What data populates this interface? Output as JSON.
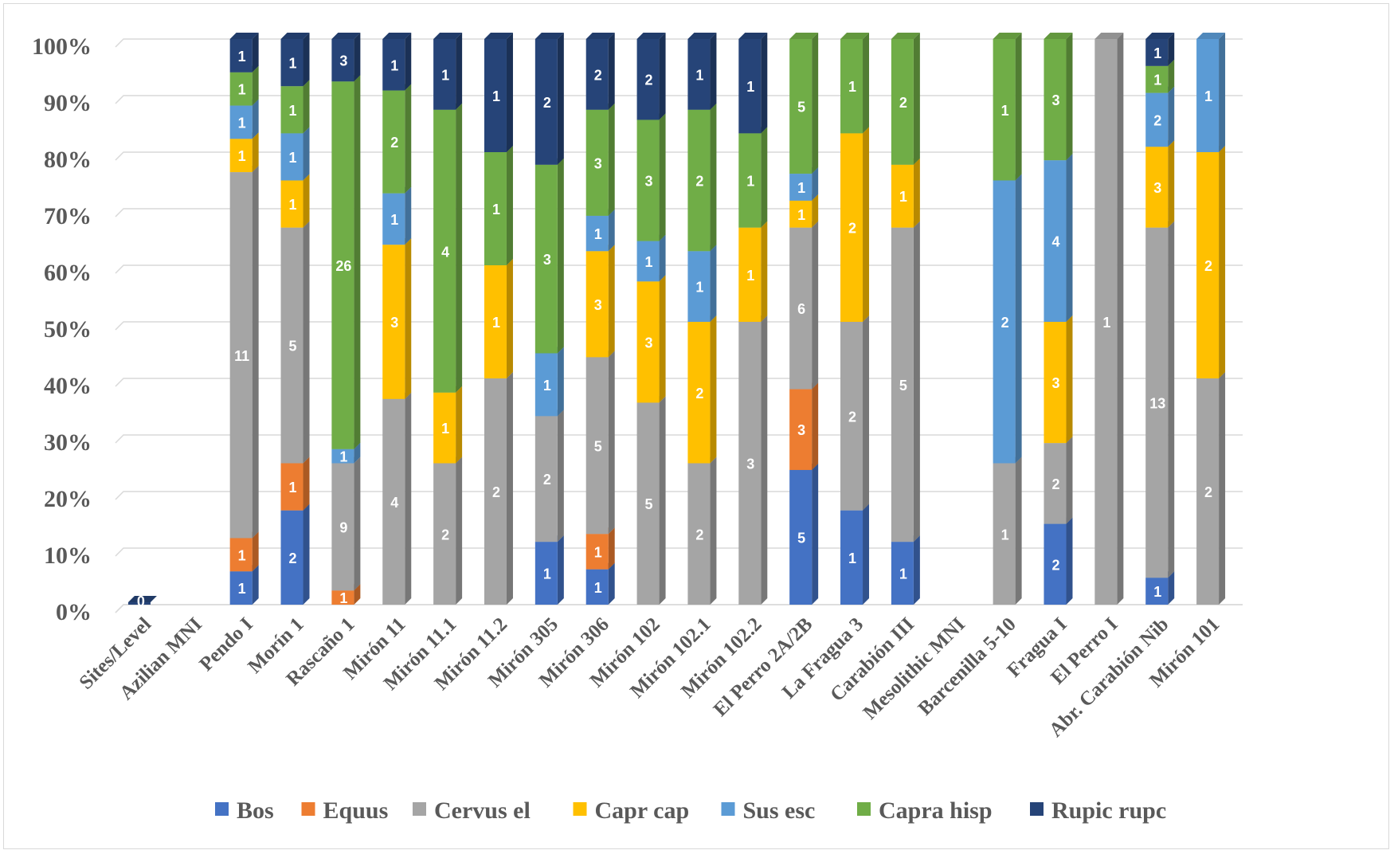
{
  "chart_data": {
    "type": "bar",
    "stacked": true,
    "normalized": true,
    "title": "",
    "xlabel": "",
    "ylabel": "",
    "ylim": [
      0,
      100
    ],
    "yticks": [
      "0%",
      "10%",
      "20%",
      "30%",
      "40%",
      "50%",
      "60%",
      "70%",
      "80%",
      "90%",
      "100%"
    ],
    "legend_position": "bottom",
    "categories": [
      "Sites/Level",
      "Azilian MNI",
      "Pendo I",
      "Morín 1",
      "Rascaño 1",
      "Mirón 11",
      "Mirón 11.1",
      "Mirón 11.2",
      "Mirón 305",
      "Mirón 306",
      "Mirón 102",
      "Mirón 102.1",
      "Mirón 102.2",
      "El Perro 2A/2B",
      "La Fragua 3",
      "Carabión III",
      "Mesolithic MNI",
      "Barcenilla 5-10",
      "Fragua I",
      "El Perro I",
      "Abr. Carabión Nib",
      "Mirón 101"
    ],
    "series": [
      {
        "name": "Bos",
        "color": "#4472c4",
        "values": [
          null,
          null,
          1,
          2,
          null,
          null,
          null,
          null,
          1,
          1,
          null,
          null,
          null,
          5,
          1,
          1,
          null,
          null,
          2,
          null,
          1,
          null
        ]
      },
      {
        "name": "Equus",
        "color": "#ed7d31",
        "values": [
          null,
          null,
          1,
          1,
          1,
          null,
          null,
          null,
          null,
          1,
          null,
          null,
          null,
          3,
          null,
          null,
          null,
          null,
          null,
          null,
          null,
          null
        ]
      },
      {
        "name": "Cervus el",
        "color": "#a5a5a5",
        "values": [
          null,
          null,
          11,
          5,
          9,
          4,
          2,
          2,
          2,
          5,
          5,
          2,
          3,
          6,
          2,
          5,
          null,
          1,
          2,
          1,
          13,
          2
        ]
      },
      {
        "name": "Capr cap",
        "color": "#ffc000",
        "values": [
          null,
          null,
          1,
          1,
          null,
          3,
          1,
          1,
          null,
          3,
          3,
          2,
          1,
          1,
          2,
          1,
          null,
          null,
          3,
          null,
          3,
          2
        ]
      },
      {
        "name": "Sus esc",
        "color": "#5b9bd5",
        "values": [
          null,
          null,
          1,
          1,
          1,
          1,
          null,
          null,
          1,
          1,
          1,
          1,
          null,
          1,
          null,
          null,
          null,
          2,
          4,
          null,
          2,
          1
        ]
      },
      {
        "name": "Capra hisp",
        "color": "#70ad47",
        "values": [
          null,
          null,
          1,
          1,
          26,
          2,
          4,
          1,
          3,
          3,
          3,
          2,
          1,
          5,
          1,
          2,
          null,
          1,
          3,
          null,
          1,
          null
        ]
      },
      {
        "name": "Rupic rupc",
        "color": "#264478",
        "values": [
          0,
          null,
          1,
          1,
          3,
          1,
          1,
          1,
          2,
          2,
          2,
          1,
          1,
          null,
          null,
          null,
          null,
          null,
          null,
          null,
          1,
          null
        ]
      }
    ]
  }
}
